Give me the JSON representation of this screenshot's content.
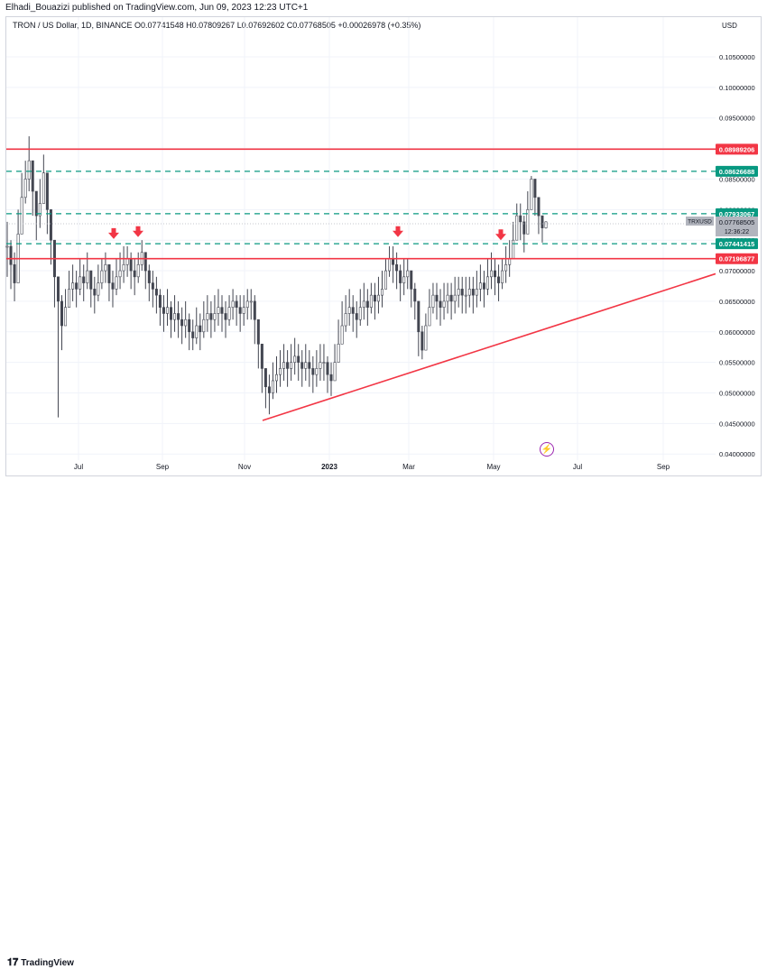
{
  "publisher_line": "Elhadi_Bouazizi published on TradingView.com, Jun 09, 2023 12:23 UTC+1",
  "legend": {
    "symbol": "TRON / US Dollar, 1D, BINANCE",
    "open": "O0.07741548",
    "high": "H0.07809267",
    "low": "L0.07692602",
    "close": "C0.07768505",
    "change": "+0.00026978 (+0.35%)"
  },
  "currency": "USD",
  "footer_brand": "TradingView",
  "colors": {
    "candle": "#434651",
    "resistance": "#f23645",
    "dashed": "#089981",
    "arrow": "#f23645",
    "last_price_label": "#b2b5be"
  },
  "chart_data": {
    "type": "bar",
    "title": "",
    "xlabel": "",
    "ylabel": "",
    "scale": "linear",
    "x_ticks": [
      "Jul",
      "Sep",
      "Nov",
      "2023",
      "Mar",
      "May",
      "Jul",
      "Sep"
    ],
    "y_ticks": [
      "0.10500000",
      "0.10000000",
      "0.09500000",
      "0.09000000",
      "0.08500000",
      "0.08000000",
      "0.07500000",
      "0.07000000",
      "0.06500000",
      "0.06000000",
      "0.05500000",
      "0.05000000",
      "0.04500000",
      "0.04000000"
    ],
    "ylim": [
      0.039,
      0.1115
    ],
    "grid": true,
    "series": [
      {
        "values": [
          0.074,
          0.071,
          0.068,
          0.076,
          0.082,
          0.085,
          0.088,
          0.083,
          0.079,
          0.081,
          0.086,
          0.08,
          0.075,
          0.069,
          0.065,
          0.061,
          0.064,
          0.067,
          0.068,
          0.067,
          0.069,
          0.068,
          0.07,
          0.067,
          0.066,
          0.068,
          0.07,
          0.071,
          0.068,
          0.067,
          0.069,
          0.07,
          0.071,
          0.072,
          0.07,
          0.069,
          0.071,
          0.073,
          0.07,
          0.068,
          0.067,
          0.066,
          0.064,
          0.063,
          0.064,
          0.062,
          0.063,
          0.062,
          0.061,
          0.062,
          0.06,
          0.059,
          0.061,
          0.06,
          0.062,
          0.063,
          0.062,
          0.063,
          0.064,
          0.063,
          0.062,
          0.064,
          0.065,
          0.064,
          0.063,
          0.064,
          0.065,
          0.065,
          0.062,
          0.058,
          0.054,
          0.051,
          0.05,
          0.052,
          0.053,
          0.054,
          0.055,
          0.054,
          0.055,
          0.056,
          0.055,
          0.054,
          0.055,
          0.054,
          0.053,
          0.054,
          0.055,
          0.055,
          0.053,
          0.052,
          0.055,
          0.058,
          0.061,
          0.063,
          0.064,
          0.063,
          0.062,
          0.064,
          0.065,
          0.064,
          0.066,
          0.065,
          0.066,
          0.067,
          0.07,
          0.072,
          0.071,
          0.07,
          0.068,
          0.069,
          0.07,
          0.067,
          0.065,
          0.06,
          0.057,
          0.061,
          0.064,
          0.066,
          0.065,
          0.064,
          0.065,
          0.066,
          0.065,
          0.066,
          0.067,
          0.066,
          0.066,
          0.067,
          0.066,
          0.067,
          0.068,
          0.067,
          0.069,
          0.07,
          0.069,
          0.068,
          0.07,
          0.071,
          0.072,
          0.075,
          0.079,
          0.078,
          0.076,
          0.08,
          0.085,
          0.082,
          0.079,
          0.077,
          0.078
        ],
        "highs": [
          0.078,
          0.075,
          0.073,
          0.08,
          0.086,
          0.088,
          0.092,
          0.087,
          0.083,
          0.085,
          0.089,
          0.084,
          0.078,
          0.073,
          0.068,
          0.066,
          0.067,
          0.07,
          0.071,
          0.07,
          0.072,
          0.071,
          0.073,
          0.07,
          0.069,
          0.071,
          0.072,
          0.073,
          0.071,
          0.07,
          0.072,
          0.073,
          0.074,
          0.074,
          0.073,
          0.072,
          0.073,
          0.075,
          0.073,
          0.071,
          0.07,
          0.069,
          0.067,
          0.066,
          0.067,
          0.065,
          0.066,
          0.065,
          0.064,
          0.065,
          0.063,
          0.062,
          0.064,
          0.063,
          0.065,
          0.066,
          0.065,
          0.066,
          0.067,
          0.066,
          0.065,
          0.066,
          0.067,
          0.066,
          0.066,
          0.066,
          0.067,
          0.067,
          0.066,
          0.062,
          0.057,
          0.054,
          0.053,
          0.055,
          0.056,
          0.057,
          0.058,
          0.057,
          0.058,
          0.059,
          0.058,
          0.057,
          0.058,
          0.057,
          0.056,
          0.057,
          0.058,
          0.058,
          0.056,
          0.055,
          0.058,
          0.062,
          0.065,
          0.066,
          0.067,
          0.066,
          0.065,
          0.067,
          0.068,
          0.067,
          0.068,
          0.068,
          0.069,
          0.07,
          0.072,
          0.074,
          0.074,
          0.073,
          0.071,
          0.072,
          0.072,
          0.07,
          0.068,
          0.065,
          0.061,
          0.063,
          0.067,
          0.068,
          0.068,
          0.067,
          0.068,
          0.068,
          0.068,
          0.069,
          0.069,
          0.069,
          0.069,
          0.069,
          0.069,
          0.07,
          0.071,
          0.07,
          0.072,
          0.073,
          0.072,
          0.071,
          0.072,
          0.074,
          0.075,
          0.078,
          0.081,
          0.081,
          0.079,
          0.083,
          0.0855,
          0.085,
          0.082,
          0.079,
          0.0781
        ],
        "lows": [
          0.069,
          0.067,
          0.065,
          0.072,
          0.078,
          0.081,
          0.083,
          0.079,
          0.075,
          0.077,
          0.081,
          0.076,
          0.071,
          0.064,
          0.046,
          0.057,
          0.061,
          0.064,
          0.065,
          0.064,
          0.066,
          0.065,
          0.067,
          0.064,
          0.063,
          0.065,
          0.067,
          0.068,
          0.065,
          0.064,
          0.066,
          0.067,
          0.068,
          0.069,
          0.067,
          0.066,
          0.068,
          0.07,
          0.067,
          0.065,
          0.064,
          0.063,
          0.061,
          0.06,
          0.061,
          0.059,
          0.06,
          0.059,
          0.058,
          0.059,
          0.057,
          0.057,
          0.058,
          0.057,
          0.059,
          0.06,
          0.059,
          0.06,
          0.061,
          0.06,
          0.059,
          0.061,
          0.062,
          0.061,
          0.06,
          0.061,
          0.062,
          0.062,
          0.058,
          0.054,
          0.05,
          0.0475,
          0.0465,
          0.049,
          0.05,
          0.051,
          0.052,
          0.051,
          0.052,
          0.053,
          0.052,
          0.051,
          0.052,
          0.051,
          0.05,
          0.051,
          0.052,
          0.052,
          0.05,
          0.0495,
          0.052,
          0.055,
          0.058,
          0.06,
          0.061,
          0.06,
          0.059,
          0.061,
          0.062,
          0.061,
          0.063,
          0.062,
          0.063,
          0.064,
          0.067,
          0.069,
          0.068,
          0.067,
          0.065,
          0.066,
          0.067,
          0.064,
          0.062,
          0.056,
          0.0555,
          0.058,
          0.061,
          0.063,
          0.062,
          0.061,
          0.062,
          0.063,
          0.062,
          0.063,
          0.064,
          0.063,
          0.063,
          0.064,
          0.063,
          0.064,
          0.065,
          0.064,
          0.066,
          0.067,
          0.066,
          0.065,
          0.067,
          0.068,
          0.069,
          0.072,
          0.076,
          0.075,
          0.073,
          0.077,
          0.081,
          0.079,
          0.076,
          0.0746,
          0.0769
        ]
      }
    ],
    "levels": [
      {
        "value": "0.08989206",
        "style": "solid",
        "color": "#f23645"
      },
      {
        "value": "0.08626688",
        "style": "dashed",
        "color": "#089981"
      },
      {
        "value": "0.07933067",
        "style": "dashed",
        "color": "#089981"
      },
      {
        "value": "0.07441415",
        "style": "dashed",
        "color": "#089981"
      },
      {
        "value": "0.07196877",
        "style": "solid",
        "color": "#f23645"
      }
    ],
    "last_price": {
      "symbol": "TRXUSD",
      "price": "0.07768505",
      "countdown": "12:36:22"
    },
    "trendline": {
      "from": [
        "Nov",
        0.0455
      ],
      "to": [
        "Sep",
        0.0695
      ],
      "color": "#f23645"
    },
    "arrows": 4
  }
}
